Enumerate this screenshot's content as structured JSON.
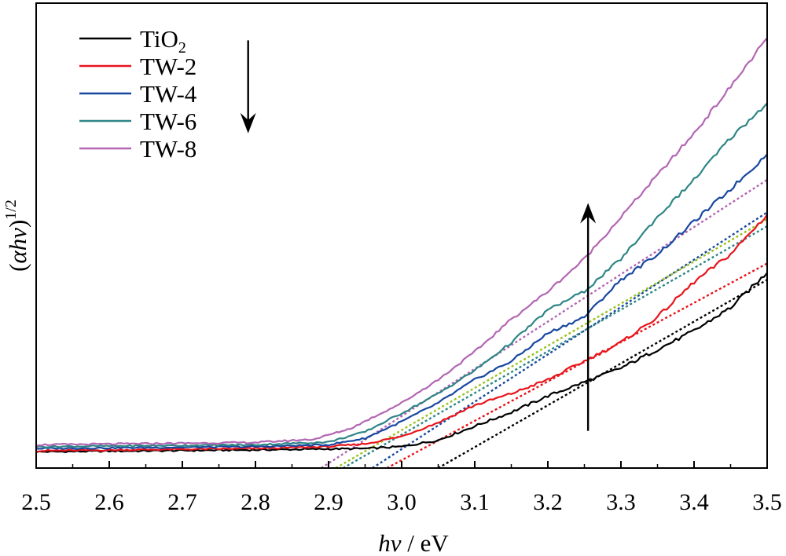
{
  "chart_data": {
    "type": "line",
    "title": "",
    "xlabel_italic": "hν",
    "xlabel_rest": " / eV",
    "ylabel_pre": "(",
    "ylabel_italic": "αhν",
    "ylabel_post": ")",
    "ylabel_sup": "1/2",
    "xlim": [
      2.5,
      3.5
    ],
    "ylim": [
      0,
      1
    ],
    "xticks": [
      "2.5",
      "2.6",
      "2.7",
      "2.8",
      "2.9",
      "3.0",
      "3.1",
      "3.2",
      "3.3",
      "3.4",
      "3.5"
    ],
    "legend_position": "top-left",
    "series": [
      {
        "name_main": "TiO",
        "name_sub": "2",
        "color": "#000000",
        "points": [
          [
            2.5,
            0.035
          ],
          [
            2.8,
            0.039
          ],
          [
            2.95,
            0.042
          ],
          [
            3.0,
            0.046
          ],
          [
            3.05,
            0.06
          ],
          [
            3.1,
            0.09
          ],
          [
            3.15,
            0.12
          ],
          [
            3.2,
            0.155
          ],
          [
            3.25,
            0.185
          ],
          [
            3.3,
            0.215
          ],
          [
            3.35,
            0.255
          ],
          [
            3.4,
            0.295
          ],
          [
            3.45,
            0.345
          ],
          [
            3.5,
            0.42
          ]
        ],
        "fit": [
          [
            3.05,
            0.0
          ],
          [
            3.5,
            0.405
          ]
        ]
      },
      {
        "name_main": "TW-2",
        "name_sub": "",
        "color": "#e8141a",
        "points": [
          [
            2.5,
            0.037
          ],
          [
            2.8,
            0.042
          ],
          [
            2.9,
            0.046
          ],
          [
            2.95,
            0.052
          ],
          [
            3.0,
            0.068
          ],
          [
            3.05,
            0.098
          ],
          [
            3.1,
            0.135
          ],
          [
            3.15,
            0.16
          ],
          [
            3.2,
            0.19
          ],
          [
            3.25,
            0.23
          ],
          [
            3.3,
            0.27
          ],
          [
            3.35,
            0.325
          ],
          [
            3.4,
            0.4
          ],
          [
            3.45,
            0.46
          ],
          [
            3.5,
            0.545
          ]
        ],
        "fit": [
          [
            2.98,
            0.0
          ],
          [
            3.5,
            0.44
          ]
        ]
      },
      {
        "name_main": "TW-4",
        "name_sub": "",
        "color": "#1747a0",
        "points": [
          [
            2.5,
            0.042
          ],
          [
            2.8,
            0.046
          ],
          [
            2.9,
            0.05
          ],
          [
            2.95,
            0.064
          ],
          [
            3.0,
            0.1
          ],
          [
            3.05,
            0.14
          ],
          [
            3.1,
            0.19
          ],
          [
            3.15,
            0.23
          ],
          [
            3.2,
            0.29
          ],
          [
            3.25,
            0.325
          ],
          [
            3.3,
            0.405
          ],
          [
            3.35,
            0.46
          ],
          [
            3.4,
            0.53
          ],
          [
            3.45,
            0.6
          ],
          [
            3.5,
            0.675
          ]
        ],
        "fit": [
          [
            2.96,
            0.0
          ],
          [
            3.5,
            0.55
          ]
        ]
      },
      {
        "name_main": "TW-6",
        "name_sub": "",
        "color": "#2e8585",
        "points": [
          [
            2.5,
            0.046
          ],
          [
            2.8,
            0.05
          ],
          [
            2.9,
            0.056
          ],
          [
            2.95,
            0.078
          ],
          [
            3.0,
            0.118
          ],
          [
            3.05,
            0.16
          ],
          [
            3.1,
            0.21
          ],
          [
            3.15,
            0.27
          ],
          [
            3.2,
            0.34
          ],
          [
            3.25,
            0.38
          ],
          [
            3.3,
            0.45
          ],
          [
            3.35,
            0.54
          ],
          [
            3.4,
            0.62
          ],
          [
            3.45,
            0.71
          ],
          [
            3.5,
            0.785
          ]
        ],
        "fit": [
          [
            2.92,
            0.0
          ],
          [
            3.5,
            0.52
          ]
        ]
      },
      {
        "name_main": "TW-8",
        "name_sub": "",
        "color": "#b266b3",
        "points": [
          [
            2.5,
            0.05
          ],
          [
            2.8,
            0.055
          ],
          [
            2.88,
            0.062
          ],
          [
            2.93,
            0.085
          ],
          [
            3.0,
            0.14
          ],
          [
            3.05,
            0.19
          ],
          [
            3.1,
            0.25
          ],
          [
            3.15,
            0.32
          ],
          [
            3.2,
            0.38
          ],
          [
            3.25,
            0.45
          ],
          [
            3.3,
            0.54
          ],
          [
            3.35,
            0.63
          ],
          [
            3.4,
            0.72
          ],
          [
            3.45,
            0.82
          ],
          [
            3.5,
            0.925
          ]
        ],
        "fit": [
          [
            2.89,
            0.0
          ],
          [
            3.5,
            0.62
          ]
        ]
      }
    ],
    "extra_fits": [
      {
        "color": "#9ac21f",
        "points": [
          [
            2.91,
            0.0
          ],
          [
            3.5,
            0.535
          ]
        ]
      }
    ],
    "arrows": [
      {
        "direction": "down",
        "x": 2.79,
        "y_from": 0.92,
        "y_to": 0.72
      },
      {
        "direction": "up",
        "x": 3.255,
        "y_from": 0.08,
        "y_to": 0.57
      }
    ]
  }
}
